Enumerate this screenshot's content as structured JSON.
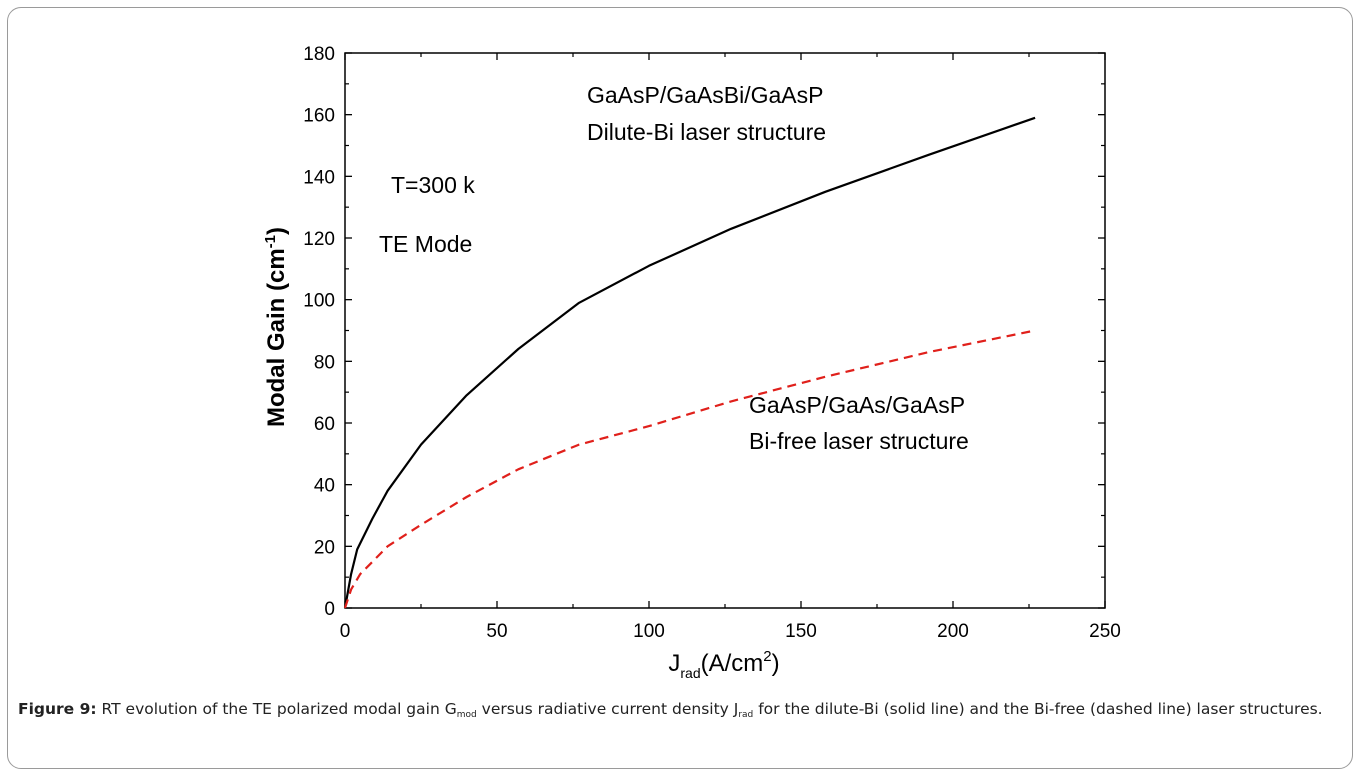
{
  "chart_data": {
    "type": "line",
    "x_unit_text": "(A/cm",
    "x_unit_sup": "2",
    "x_unit_close": ")",
    "x_label_main": "J",
    "x_label_sub": "rad",
    "y_label_main": "Modal Gain (cm",
    "y_label_sup": "-1",
    "y_label_close": ")",
    "xlim": [
      0,
      250
    ],
    "ylim": [
      0,
      180
    ],
    "xticks": [
      0,
      50,
      100,
      150,
      200,
      250
    ],
    "yticks": [
      0,
      20,
      40,
      60,
      80,
      100,
      120,
      140,
      160,
      180
    ],
    "grid": false,
    "series": [
      {
        "name": "Dilute-Bi",
        "color": "#000000",
        "style": "solid",
        "x": [
          0,
          2,
          4,
          9,
          14,
          25,
          40,
          57,
          77,
          100,
          127,
          158,
          192,
          227
        ],
        "y": [
          0,
          11,
          19,
          29,
          38,
          53,
          69,
          84,
          99,
          111,
          123,
          135,
          147,
          159
        ]
      },
      {
        "name": "Bi-free",
        "color": "#e0201b",
        "style": "dashed",
        "x": [
          0,
          2,
          5,
          9,
          14,
          25,
          40,
          57,
          77,
          100,
          127,
          158,
          192,
          227
        ],
        "y": [
          0,
          6,
          11,
          15,
          20,
          27,
          36,
          45,
          53,
          59,
          67,
          75,
          83,
          90
        ]
      }
    ],
    "annotations": [
      {
        "id": "bi-structure-line1",
        "text": "GaAsP/GaAsBi/GaAsP"
      },
      {
        "id": "bi-structure-line2",
        "text": "Dilute-Bi laser structure"
      },
      {
        "id": "temperature",
        "text": "T=300 k"
      },
      {
        "id": "mode",
        "text": "TE Mode"
      },
      {
        "id": "bifree-structure-line1",
        "text": "GaAsP/GaAs/GaAsP"
      },
      {
        "id": "bifree-structure-line2",
        "text": "Bi-free laser structure"
      }
    ]
  },
  "caption": {
    "label": "Figure 9:",
    "text_a": " RT evolution of the TE polarized modal gain G",
    "sub_a": "mod",
    "text_b": " versus radiative current density J",
    "sub_b": "rad",
    "text_c": " for the dilute-Bi (solid line) and the Bi-free  (dashed line) laser structures."
  }
}
